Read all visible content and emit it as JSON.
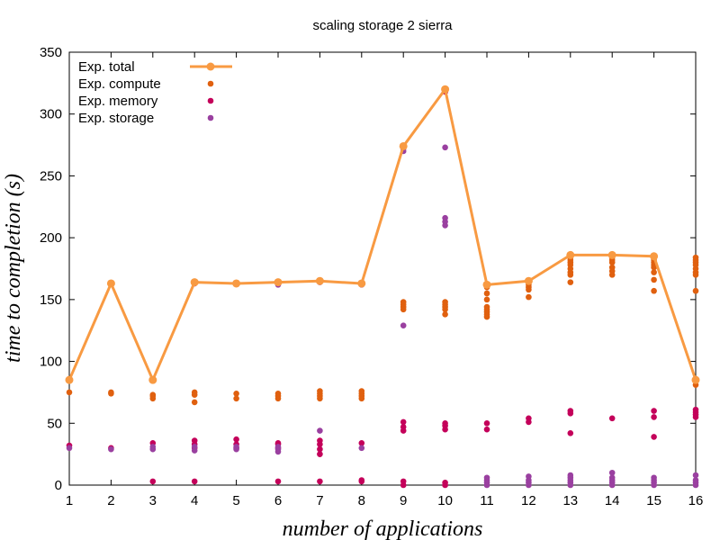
{
  "chart_data": {
    "type": "scatter",
    "title": "scaling storage 2 sierra",
    "xlabel": "number of applications",
    "ylabel": "time to completion (s)",
    "xlim": [
      1,
      16
    ],
    "ylim": [
      0,
      350
    ],
    "x_ticks": [
      "1",
      "2",
      "3",
      "4",
      "5",
      "6",
      "7",
      "8",
      "9",
      "10",
      "11",
      "12",
      "13",
      "14",
      "15",
      "16"
    ],
    "y_ticks": [
      "0",
      "50",
      "100",
      "150",
      "200",
      "250",
      "300",
      "350"
    ],
    "grid": false,
    "legend_position": "top-left",
    "series": [
      {
        "name": "Exp. total",
        "kind": "line",
        "color": "#f89a42",
        "x": [
          1,
          2,
          3,
          4,
          5,
          6,
          7,
          8,
          9,
          10,
          11,
          12,
          13,
          14,
          15,
          16
        ],
        "y": [
          85,
          163,
          85,
          164,
          163,
          164,
          165,
          163,
          274,
          320,
          162,
          165,
          186,
          186,
          185,
          85
        ]
      },
      {
        "name": "Exp. compute",
        "kind": "points",
        "color": "#e0600f",
        "points": [
          [
            1,
            75
          ],
          [
            2,
            74
          ],
          [
            2,
            75
          ],
          [
            3,
            70
          ],
          [
            3,
            72
          ],
          [
            3,
            73
          ],
          [
            4,
            67
          ],
          [
            4,
            73
          ],
          [
            4,
            75
          ],
          [
            5,
            70
          ],
          [
            5,
            74
          ],
          [
            6,
            70
          ],
          [
            6,
            72
          ],
          [
            6,
            74
          ],
          [
            7,
            70
          ],
          [
            7,
            72
          ],
          [
            7,
            74
          ],
          [
            7,
            76
          ],
          [
            8,
            70
          ],
          [
            8,
            72
          ],
          [
            8,
            74
          ],
          [
            8,
            76
          ],
          [
            9,
            142
          ],
          [
            9,
            144
          ],
          [
            9,
            146
          ],
          [
            9,
            148
          ],
          [
            10,
            138
          ],
          [
            10,
            142
          ],
          [
            10,
            144
          ],
          [
            10,
            146
          ],
          [
            10,
            148
          ],
          [
            11,
            136
          ],
          [
            11,
            138
          ],
          [
            11,
            140
          ],
          [
            11,
            142
          ],
          [
            11,
            144
          ],
          [
            11,
            150
          ],
          [
            11,
            155
          ],
          [
            11,
            160
          ],
          [
            12,
            152
          ],
          [
            12,
            158
          ],
          [
            12,
            160
          ],
          [
            12,
            162
          ],
          [
            12,
            164
          ],
          [
            13,
            164
          ],
          [
            13,
            170
          ],
          [
            13,
            172
          ],
          [
            13,
            175
          ],
          [
            13,
            178
          ],
          [
            13,
            180
          ],
          [
            13,
            182
          ],
          [
            13,
            184
          ],
          [
            14,
            170
          ],
          [
            14,
            173
          ],
          [
            14,
            176
          ],
          [
            14,
            180
          ],
          [
            14,
            182
          ],
          [
            14,
            184
          ],
          [
            15,
            157
          ],
          [
            15,
            166
          ],
          [
            15,
            172
          ],
          [
            15,
            176
          ],
          [
            15,
            178
          ],
          [
            15,
            180
          ],
          [
            15,
            182
          ],
          [
            15,
            184
          ],
          [
            16,
            81
          ],
          [
            16,
            157
          ],
          [
            16,
            170
          ],
          [
            16,
            172
          ],
          [
            16,
            175
          ],
          [
            16,
            178
          ],
          [
            16,
            180
          ],
          [
            16,
            182
          ],
          [
            16,
            184
          ]
        ]
      },
      {
        "name": "Exp. memory",
        "kind": "points",
        "color": "#c4005a",
        "points": [
          [
            1,
            32
          ],
          [
            2,
            30
          ],
          [
            3,
            3
          ],
          [
            3,
            34
          ],
          [
            4,
            3
          ],
          [
            4,
            30
          ],
          [
            4,
            33
          ],
          [
            4,
            36
          ],
          [
            4,
            163
          ],
          [
            5,
            30
          ],
          [
            5,
            33
          ],
          [
            5,
            37
          ],
          [
            6,
            3
          ],
          [
            6,
            30
          ],
          [
            6,
            33
          ],
          [
            6,
            34
          ],
          [
            7,
            3
          ],
          [
            7,
            25
          ],
          [
            7,
            29
          ],
          [
            7,
            33
          ],
          [
            7,
            36
          ],
          [
            8,
            3
          ],
          [
            8,
            4
          ],
          [
            8,
            34
          ],
          [
            9,
            0
          ],
          [
            9,
            3
          ],
          [
            9,
            44
          ],
          [
            9,
            47
          ],
          [
            9,
            51
          ],
          [
            10,
            0
          ],
          [
            10,
            2
          ],
          [
            10,
            45
          ],
          [
            10,
            48
          ],
          [
            10,
            50
          ],
          [
            10,
            318
          ],
          [
            11,
            45
          ],
          [
            11,
            50
          ],
          [
            12,
            51
          ],
          [
            12,
            54
          ],
          [
            13,
            42
          ],
          [
            13,
            58
          ],
          [
            13,
            60
          ],
          [
            14,
            54
          ],
          [
            15,
            39
          ],
          [
            15,
            55
          ],
          [
            15,
            60
          ],
          [
            16,
            55
          ],
          [
            16,
            57
          ],
          [
            16,
            59
          ],
          [
            16,
            61
          ]
        ]
      },
      {
        "name": "Exp. storage",
        "kind": "points",
        "color": "#9a40a0",
        "points": [
          [
            1,
            30
          ],
          [
            2,
            29
          ],
          [
            3,
            29
          ],
          [
            3,
            31
          ],
          [
            4,
            28
          ],
          [
            4,
            31
          ],
          [
            5,
            29
          ],
          [
            5,
            31
          ],
          [
            6,
            27
          ],
          [
            6,
            29
          ],
          [
            6,
            31
          ],
          [
            6,
            162
          ],
          [
            7,
            44
          ],
          [
            7,
            164
          ],
          [
            8,
            30
          ],
          [
            8,
            162
          ],
          [
            9,
            129
          ],
          [
            9,
            270
          ],
          [
            9,
            272
          ],
          [
            10,
            210
          ],
          [
            10,
            213
          ],
          [
            10,
            216
          ],
          [
            10,
            273
          ],
          [
            11,
            0
          ],
          [
            11,
            2
          ],
          [
            11,
            4
          ],
          [
            11,
            6
          ],
          [
            12,
            0
          ],
          [
            12,
            2
          ],
          [
            12,
            4
          ],
          [
            12,
            7
          ],
          [
            13,
            0
          ],
          [
            13,
            2
          ],
          [
            13,
            4
          ],
          [
            13,
            6
          ],
          [
            13,
            8
          ],
          [
            14,
            0
          ],
          [
            14,
            2
          ],
          [
            14,
            4
          ],
          [
            14,
            6
          ],
          [
            14,
            10
          ],
          [
            15,
            0
          ],
          [
            15,
            2
          ],
          [
            15,
            4
          ],
          [
            15,
            6
          ],
          [
            16,
            0
          ],
          [
            16,
            2
          ],
          [
            16,
            4
          ],
          [
            16,
            8
          ]
        ]
      }
    ]
  }
}
